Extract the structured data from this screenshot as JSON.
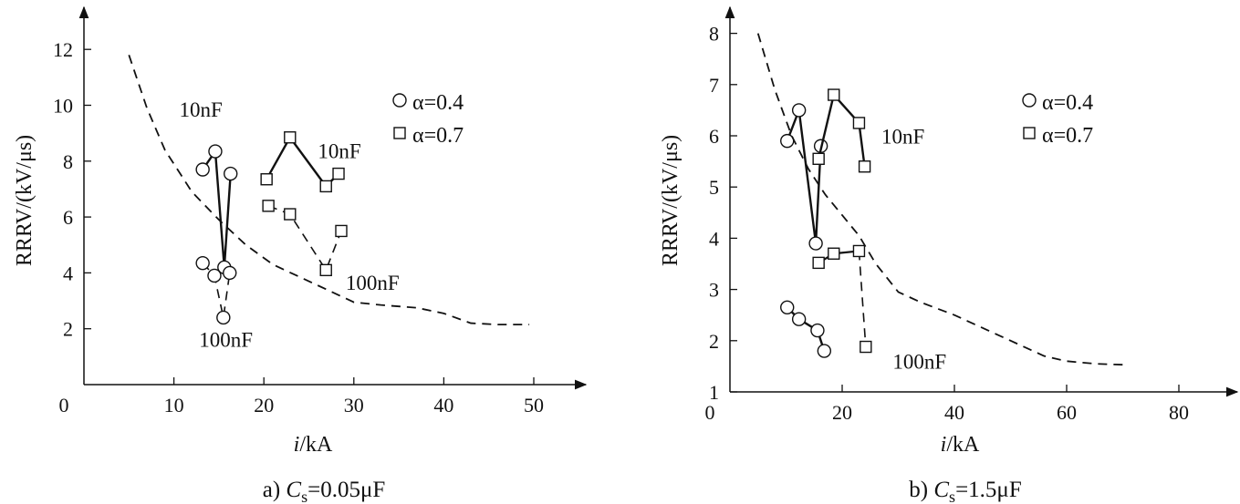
{
  "chart_data": [
    {
      "type": "line",
      "caption": "a) Cs=0.05μF",
      "caption_parts": {
        "prefix": "a) ",
        "var": "C",
        "sub": "s",
        "rest": "=0.05μF"
      },
      "xlabel": {
        "var": "i",
        "unit": "/kA"
      },
      "ylabel": "RRRV/(kV/μs)",
      "xlim": [
        0,
        50
      ],
      "ylim": [
        0,
        13
      ],
      "xticks": [
        0,
        10,
        20,
        30,
        40,
        50
      ],
      "yticks": [
        2,
        4,
        6,
        8,
        10,
        12
      ],
      "legend": {
        "position": "top-right",
        "entries": [
          {
            "marker": "circle",
            "label": "α=0.4"
          },
          {
            "marker": "square",
            "label": "α=0.7"
          }
        ]
      },
      "series": [
        {
          "alpha": "0.4",
          "cap": "10nF",
          "marker": "circle",
          "style": "solid",
          "x": [
            13.2,
            14.6,
            15.6,
            16.3
          ],
          "y": [
            7.7,
            8.35,
            4.2,
            7.55
          ]
        },
        {
          "alpha": "0.4",
          "cap": "100nF",
          "marker": "circle",
          "style": "dashed",
          "x": [
            13.2,
            14.5,
            15.5,
            16.2
          ],
          "y": [
            4.35,
            3.9,
            2.4,
            4.0
          ]
        },
        {
          "alpha": "0.7",
          "cap": "10nF",
          "marker": "square",
          "style": "solid",
          "x": [
            20.3,
            22.9,
            26.9,
            28.3
          ],
          "y": [
            7.35,
            8.85,
            7.1,
            7.55
          ]
        },
        {
          "alpha": "0.7",
          "cap": "100nF",
          "marker": "square",
          "style": "dashed",
          "x": [
            20.5,
            22.9,
            26.9,
            28.6
          ],
          "y": [
            6.4,
            6.1,
            4.1,
            5.5
          ]
        },
        {
          "name": "",
          "marker": "none",
          "style": "dashed",
          "x": [
            5,
            7,
            9,
            12,
            15,
            18,
            21,
            24,
            27,
            30,
            33,
            37,
            40,
            43,
            46,
            49.5
          ],
          "y": [
            11.8,
            9.9,
            8.4,
            6.9,
            5.9,
            5.0,
            4.3,
            3.85,
            3.4,
            2.95,
            2.85,
            2.75,
            2.55,
            2.2,
            2.15,
            2.15
          ]
        }
      ],
      "annotations": [
        {
          "text": "10nF",
          "x": 10.6,
          "y": 9.6
        },
        {
          "text": "100nF",
          "x": 12.8,
          "y": 1.35
        },
        {
          "text": "10nF",
          "x": 26.0,
          "y": 8.1
        },
        {
          "text": "100nF",
          "x": 29.1,
          "y": 3.4
        }
      ]
    },
    {
      "type": "line",
      "caption": "b) Cs=1.5μF",
      "caption_parts": {
        "prefix": "b) ",
        "var": "C",
        "sub": "s",
        "rest": "=1.5μF"
      },
      "xlabel": {
        "var": "i",
        "unit": "/kA"
      },
      "ylabel": "RRRV/(kV/μs)",
      "xlim": [
        0,
        90
      ],
      "ylim": [
        1,
        8.5
      ],
      "xticks": [
        0,
        20,
        40,
        60,
        80
      ],
      "yticks": [
        1,
        2,
        3,
        4,
        5,
        6,
        7,
        8
      ],
      "legend": {
        "position": "top-right",
        "entries": [
          {
            "marker": "circle",
            "label": "α=0.4"
          },
          {
            "marker": "square",
            "label": "α=0.7"
          }
        ]
      },
      "series": [
        {
          "alpha": "0.4",
          "cap": "10nF",
          "marker": "circle",
          "style": "solid",
          "x": [
            10.2,
            12.3,
            15.3,
            16.2
          ],
          "y": [
            5.9,
            6.5,
            3.9,
            5.8
          ]
        },
        {
          "alpha": "0.4",
          "cap": "100nF",
          "marker": "circle",
          "style": "solid",
          "x": [
            10.2,
            12.3,
            15.6,
            16.8
          ],
          "y": [
            2.65,
            2.42,
            2.2,
            1.8
          ]
        },
        {
          "alpha": "0.7",
          "cap": "10nF",
          "marker": "square",
          "style": "solid",
          "x": [
            15.8,
            18.5,
            23.0,
            24.0
          ],
          "y": [
            5.55,
            6.8,
            6.25,
            5.4
          ]
        },
        {
          "alpha": "0.7",
          "cap": "100nF",
          "marker": "square",
          "style": "mixed",
          "x": [
            15.8,
            18.5,
            23.0,
            24.2
          ],
          "y": [
            3.52,
            3.7,
            3.75,
            1.88
          ]
        },
        {
          "name": "",
          "marker": "none",
          "style": "dashed",
          "x": [
            5,
            8,
            11,
            14,
            17,
            20,
            23,
            26,
            30,
            34,
            40,
            46,
            52,
            56,
            60,
            65,
            70
          ],
          "y": [
            8.0,
            6.9,
            6.0,
            5.35,
            4.85,
            4.45,
            4.05,
            3.5,
            2.95,
            2.75,
            2.5,
            2.2,
            1.9,
            1.7,
            1.6,
            1.55,
            1.53
          ]
        }
      ],
      "annotations": [
        {
          "text": "10nF",
          "x": 27.0,
          "y": 5.85
        },
        {
          "text": "100nF",
          "x": 29.0,
          "y": 1.45
        }
      ]
    }
  ]
}
